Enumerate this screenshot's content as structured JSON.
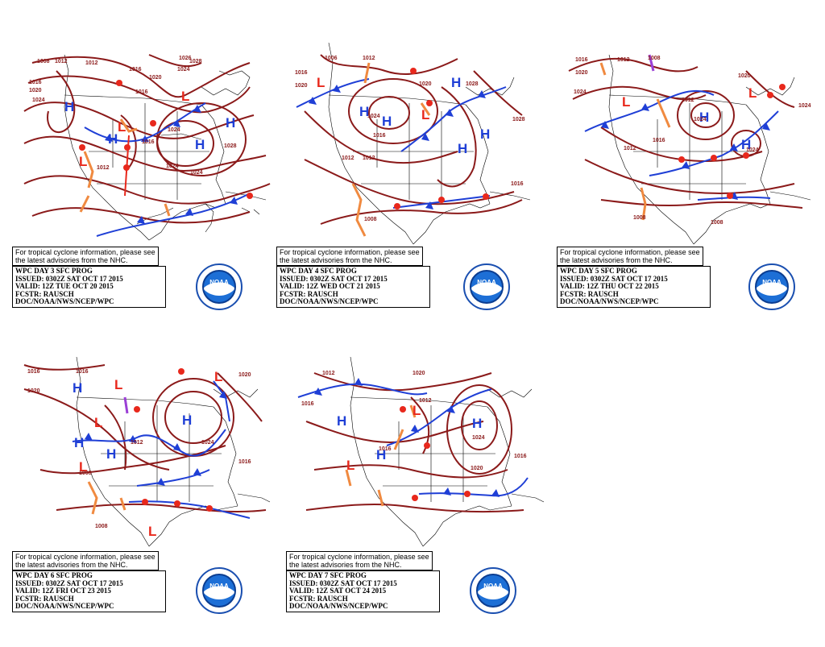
{
  "panels": [
    {
      "id": "day3",
      "notice": [
        "For tropical cyclone information, please see",
        "the latest advisories from the NHC."
      ],
      "info": [
        "WPC DAY 3 SFC PROG",
        "ISSUED: 0302Z SAT OCT 17 2015",
        "VALID: 12Z TUE OCT 20 2015",
        "FCSTR: RAUSCH",
        "DOC/NOAA/NWS/NCEP/WPC"
      ],
      "isobars": [
        "1008",
        "1012",
        "1016",
        "1020",
        "1024",
        "1012",
        "1016",
        "1016",
        "1020",
        "1024",
        "1028",
        "1026",
        "1024",
        "1016",
        "1024",
        "1028",
        "1012",
        "1024"
      ]
    },
    {
      "id": "day4",
      "notice": [
        "For tropical cyclone information, please see",
        "the latest advisories from the NHC."
      ],
      "info": [
        "WPC DAY 4 SFC PROG",
        "ISSUED: 0302Z SAT OCT 17 2015",
        "VALID: 12Z WED OCT 21 2015",
        "FCSTR: RAUSCH",
        "DOC/NOAA/NWS/NCEP/WPC"
      ],
      "isobars": [
        "1006",
        "1012",
        "1016",
        "1020",
        "1024",
        "1020",
        "1028",
        "1012",
        "1016",
        "1028",
        "1008",
        "1016",
        "1012"
      ]
    },
    {
      "id": "day5",
      "notice": [
        "For tropical cyclone information, please see",
        "the latest advisories from the NHC."
      ],
      "info": [
        "WPC DAY 5 SFC PROG",
        "ISSUED: 0302Z SAT OCT 17 2015",
        "VALID: 12Z THU OCT 22 2015",
        "FCSTR: RAUSCH",
        "DOC/NOAA/NWS/NCEP/WPC"
      ],
      "isobars": [
        "1016",
        "1012",
        "1008",
        "1020",
        "1024",
        "1012",
        "1020",
        "1024",
        "1016",
        "1024",
        "1008",
        "1012",
        "1008",
        "1024"
      ]
    },
    {
      "id": "day6",
      "notice": [
        "For tropical cyclone information, please see",
        "the latest advisories from the NHC."
      ],
      "info": [
        "WPC DAY 6 SFC PROG",
        "ISSUED: 0302Z SAT OCT 17 2015",
        "VALID: 12Z FRI OCT 23 2015",
        "FCSTR: RAUSCH",
        "DOC/NOAA/NWS/NCEP/WPC"
      ],
      "isobars": [
        "1016",
        "1020",
        "1016",
        "1020",
        "1012",
        "1024",
        "1016",
        "1008",
        "1008"
      ]
    },
    {
      "id": "day7",
      "notice": [
        "For tropical cyclone information, please see",
        "the latest advisories from the NHC."
      ],
      "info": [
        "WPC DAY 7 SFC PROG",
        "ISSUED: 0302Z SAT OCT 17 2015",
        "VALID: 12Z SAT OCT 24 2015",
        "FCSTR: RAUSCH",
        "DOC/NOAA/NWS/NCEP/WPC"
      ],
      "isobars": [
        "1012",
        "1016",
        "1020",
        "1012",
        "1016",
        "1024",
        "1020",
        "1016"
      ]
    }
  ],
  "logo_text": "NOAA",
  "colors": {
    "isobar": "#8b1a1a",
    "high": "#1f3fd6",
    "low": "#e8281c",
    "warm_front": "#e8281c",
    "cold_front": "#1f3fd6",
    "trough": "#f08a40",
    "occluded": "#9b3fd6",
    "background": "#ffffff"
  },
  "symbols": {
    "high": "H",
    "low": "L"
  }
}
